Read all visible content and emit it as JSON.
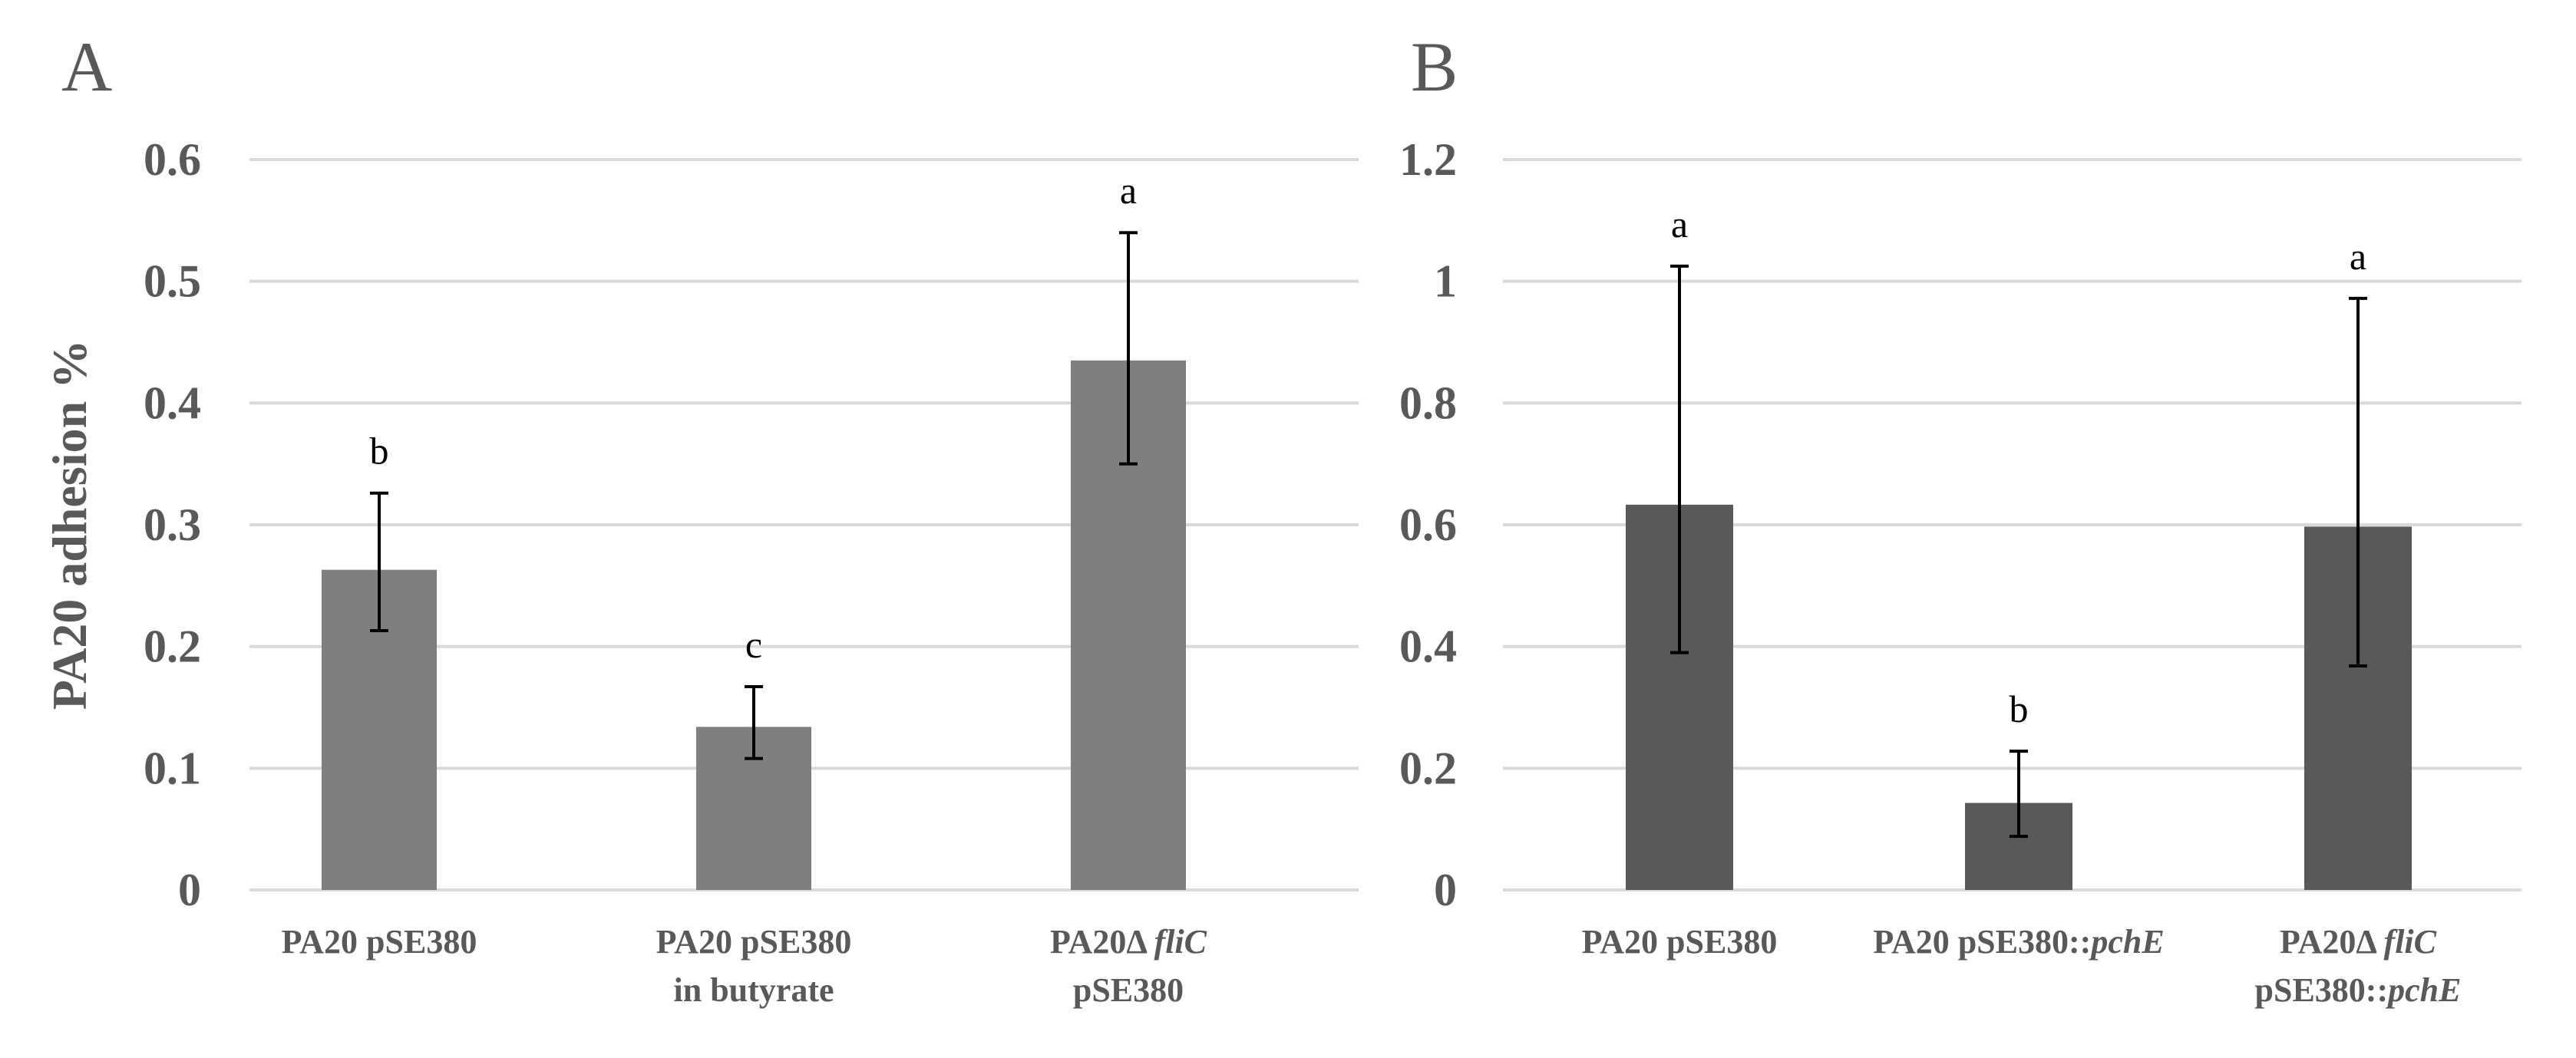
{
  "colors": {
    "panelA_bar": "#7f7f7f",
    "panelB_bar": "#595959",
    "grid": "#d9d9d9",
    "text": "#595959"
  },
  "chart_data": [
    {
      "type": "bar",
      "panel_label": "A",
      "title": "",
      "xlabel": "",
      "ylabel": "PA20 adhesion %",
      "ylim": [
        0,
        0.6
      ],
      "yticks": [
        "0",
        "0.1",
        "0.2",
        "0.3",
        "0.4",
        "0.5",
        "0.6"
      ],
      "categories": [
        {
          "lines": [
            [
              {
                "t": "PA20 pSE380",
                "i": false
              }
            ]
          ]
        },
        {
          "lines": [
            [
              {
                "t": "PA20 pSE380",
                "i": false
              }
            ],
            [
              {
                "t": "in butyrate",
                "i": false
              }
            ]
          ]
        },
        {
          "lines": [
            [
              {
                "t": "PA20Δ ",
                "i": false
              },
              {
                "t": "fliC",
                "i": true
              }
            ],
            [
              {
                "t": "pSE380",
                "i": false
              }
            ]
          ]
        }
      ],
      "values": [
        0.263,
        0.134,
        0.435
      ],
      "err_low": [
        0.213,
        0.108,
        0.35
      ],
      "err_high": [
        0.326,
        0.167,
        0.54
      ],
      "sig_labels": [
        "b",
        "c",
        "a"
      ]
    },
    {
      "type": "bar",
      "panel_label": "B",
      "title": "",
      "xlabel": "",
      "ylabel": "",
      "ylim": [
        0,
        1.2
      ],
      "yticks": [
        "0",
        "0.2",
        "0.4",
        "0.6",
        "0.8",
        "1",
        "1.2"
      ],
      "categories": [
        {
          "lines": [
            [
              {
                "t": "PA20 pSE380",
                "i": false
              }
            ]
          ]
        },
        {
          "lines": [
            [
              {
                "t": "PA20 pSE380::",
                "i": false
              },
              {
                "t": "pchE",
                "i": true
              }
            ]
          ]
        },
        {
          "lines": [
            [
              {
                "t": "PA20Δ ",
                "i": false
              },
              {
                "t": "fliC",
                "i": true
              }
            ],
            [
              {
                "t": "pSE380::",
                "i": false
              },
              {
                "t": "pchE",
                "i": true
              }
            ]
          ]
        }
      ],
      "values": [
        0.633,
        0.143,
        0.597
      ],
      "err_low": [
        0.39,
        0.088,
        0.368
      ],
      "err_high": [
        1.025,
        0.228,
        0.972
      ],
      "sig_labels": [
        "a",
        "b",
        "a"
      ]
    }
  ]
}
